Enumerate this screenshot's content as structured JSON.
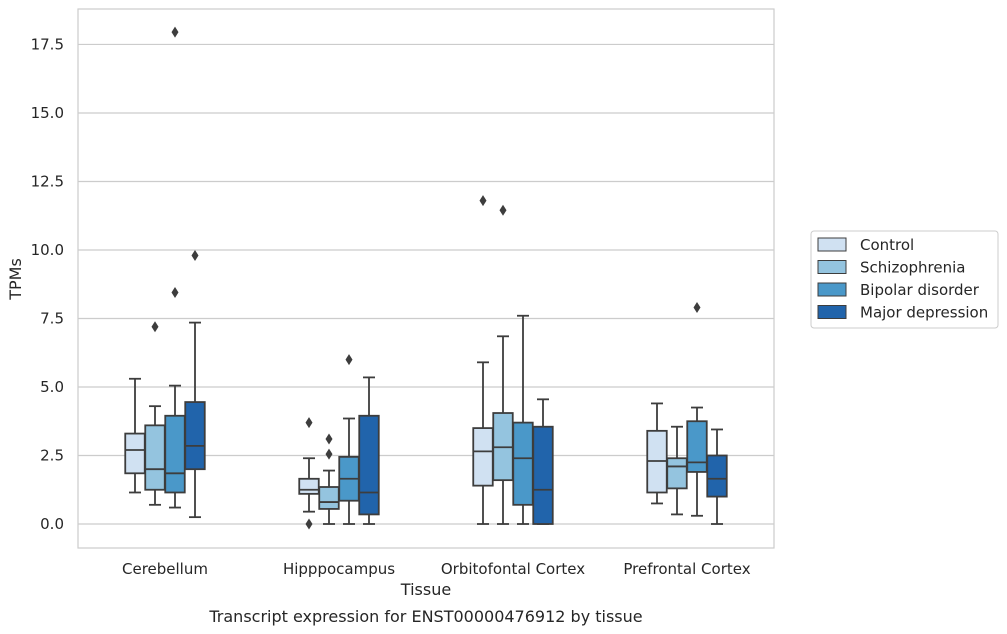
{
  "chart_data": {
    "type": "box",
    "caption": "Transcript expression for ENST00000476912 by tissue",
    "xlabel": "Tissue",
    "ylabel": "TPMs",
    "ylim": [
      -0.85,
      18.8
    ],
    "yticks": [
      "0.0",
      "2.5",
      "5.0",
      "7.5",
      "10.0",
      "12.5",
      "15.0",
      "17.5"
    ],
    "ytick_values": [
      0,
      2.5,
      5,
      7.5,
      10,
      12.5,
      15,
      17.5
    ],
    "grid": "horizontal",
    "legend_position": "right",
    "categories": [
      "Cerebellum",
      "Hipppocampus",
      "Orbitofontal Cortex",
      "Prefrontal Cortex"
    ],
    "series": [
      {
        "name": "Control",
        "color": "#d0e1f2",
        "boxes": [
          {
            "whislo": 1.15,
            "q1": 1.85,
            "med": 2.7,
            "q3": 3.3,
            "whishi": 5.3,
            "fliers": []
          },
          {
            "whislo": 0.45,
            "q1": 1.1,
            "med": 1.25,
            "q3": 1.65,
            "whishi": 2.4,
            "fliers": [
              3.7,
              0.0
            ]
          },
          {
            "whislo": 0.0,
            "q1": 1.4,
            "med": 2.65,
            "q3": 3.5,
            "whishi": 5.9,
            "fliers": [
              11.8
            ]
          },
          {
            "whislo": 0.75,
            "q1": 1.15,
            "med": 2.3,
            "q3": 3.4,
            "whishi": 4.4,
            "fliers": []
          }
        ]
      },
      {
        "name": "Schizophrenia",
        "color": "#94c4df",
        "boxes": [
          {
            "whislo": 0.7,
            "q1": 1.25,
            "med": 2.0,
            "q3": 3.6,
            "whishi": 4.3,
            "fliers": [
              7.2
            ]
          },
          {
            "whislo": 0.0,
            "q1": 0.55,
            "med": 0.8,
            "q3": 1.35,
            "whishi": 1.95,
            "fliers": [
              3.1,
              2.55
            ]
          },
          {
            "whislo": 0.0,
            "q1": 1.6,
            "med": 2.8,
            "q3": 4.05,
            "whishi": 6.85,
            "fliers": [
              11.45
            ]
          },
          {
            "whislo": 0.35,
            "q1": 1.3,
            "med": 2.1,
            "q3": 2.4,
            "whishi": 3.55,
            "fliers": []
          }
        ]
      },
      {
        "name": "Bipolar disorder",
        "color": "#4a98c9",
        "boxes": [
          {
            "whislo": 0.6,
            "q1": 1.15,
            "med": 1.85,
            "q3": 3.95,
            "whishi": 5.05,
            "fliers": [
              8.45,
              17.95
            ]
          },
          {
            "whislo": 0.0,
            "q1": 0.85,
            "med": 1.65,
            "q3": 2.45,
            "whishi": 3.85,
            "fliers": [
              6.0
            ]
          },
          {
            "whislo": 0.0,
            "q1": 0.7,
            "med": 2.4,
            "q3": 3.7,
            "whishi": 7.6,
            "fliers": []
          },
          {
            "whislo": 0.3,
            "q1": 1.9,
            "med": 2.25,
            "q3": 3.75,
            "whishi": 4.25,
            "fliers": [
              7.9
            ]
          }
        ]
      },
      {
        "name": "Major depression",
        "color": "#2164ab",
        "boxes": [
          {
            "whislo": 0.25,
            "q1": 2.0,
            "med": 2.85,
            "q3": 4.45,
            "whishi": 7.35,
            "fliers": [
              9.8
            ]
          },
          {
            "whislo": 0.0,
            "q1": 0.35,
            "med": 1.15,
            "q3": 3.95,
            "whishi": 5.35,
            "fliers": []
          },
          {
            "whislo": 0.0,
            "q1": 0.0,
            "med": 1.25,
            "q3": 3.55,
            "whishi": 4.55,
            "fliers": []
          },
          {
            "whislo": 0.0,
            "q1": 1.0,
            "med": 1.65,
            "q3": 2.5,
            "whishi": 3.45,
            "fliers": []
          }
        ]
      }
    ]
  }
}
